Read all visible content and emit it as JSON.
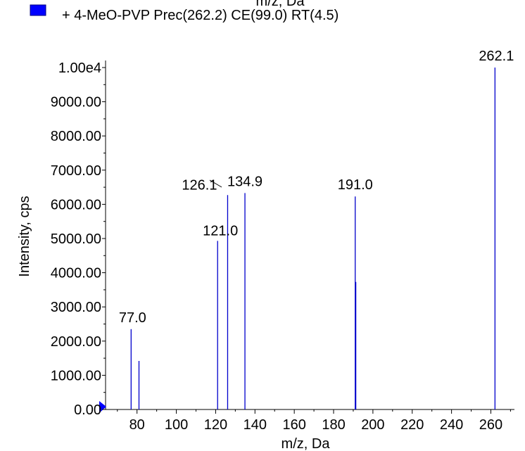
{
  "chart_data": {
    "type": "bar",
    "top_label": "m/z, Da",
    "legend": [
      {
        "label": "+ 4-MeO-PVP Prec(262.2) CE(99.0) RT(4.5)",
        "color": "#0000ff"
      }
    ],
    "xlabel": "m/z, Da",
    "ylabel": "Intensity, cps",
    "xlim": [
      64,
      272
    ],
    "ylim": [
      0,
      10000
    ],
    "x_ticks": [
      80,
      100,
      120,
      140,
      160,
      180,
      200,
      220,
      240,
      260
    ],
    "x_tick_labels": [
      "80",
      "100",
      "120",
      "140",
      "160",
      "180",
      "200",
      "220",
      "240",
      "260"
    ],
    "y_ticks": [
      0,
      1000,
      2000,
      3000,
      4000,
      5000,
      6000,
      7000,
      8000,
      9000,
      10000
    ],
    "y_tick_labels": [
      "0.00",
      "1000.00",
      "2000.00",
      "3000.00",
      "4000.00",
      "5000.00",
      "6000.00",
      "7000.00",
      "8000.00",
      "9000.00",
      "1.00e4"
    ],
    "series_color": "#0000cc",
    "peaks": [
      {
        "x": 77.0,
        "y": 2350
      },
      {
        "x": 81.0,
        "y": 1420
      },
      {
        "x": 121.0,
        "y": 4930
      },
      {
        "x": 126.1,
        "y": 6270
      },
      {
        "x": 134.9,
        "y": 6330
      },
      {
        "x": 191.0,
        "y": 6230
      },
      {
        "x": 191.3,
        "y": 3730
      },
      {
        "x": 262.1,
        "y": 10000
      }
    ],
    "peak_labels": [
      {
        "x": 77.0,
        "text": "77.0"
      },
      {
        "x": 121.0,
        "text": "121.0"
      },
      {
        "x": 126.1,
        "text": "126.1"
      },
      {
        "x": 134.9,
        "text": "134.9"
      },
      {
        "x": 191.0,
        "text": "191.0"
      },
      {
        "x": 262.1,
        "text": "262.1"
      }
    ]
  }
}
